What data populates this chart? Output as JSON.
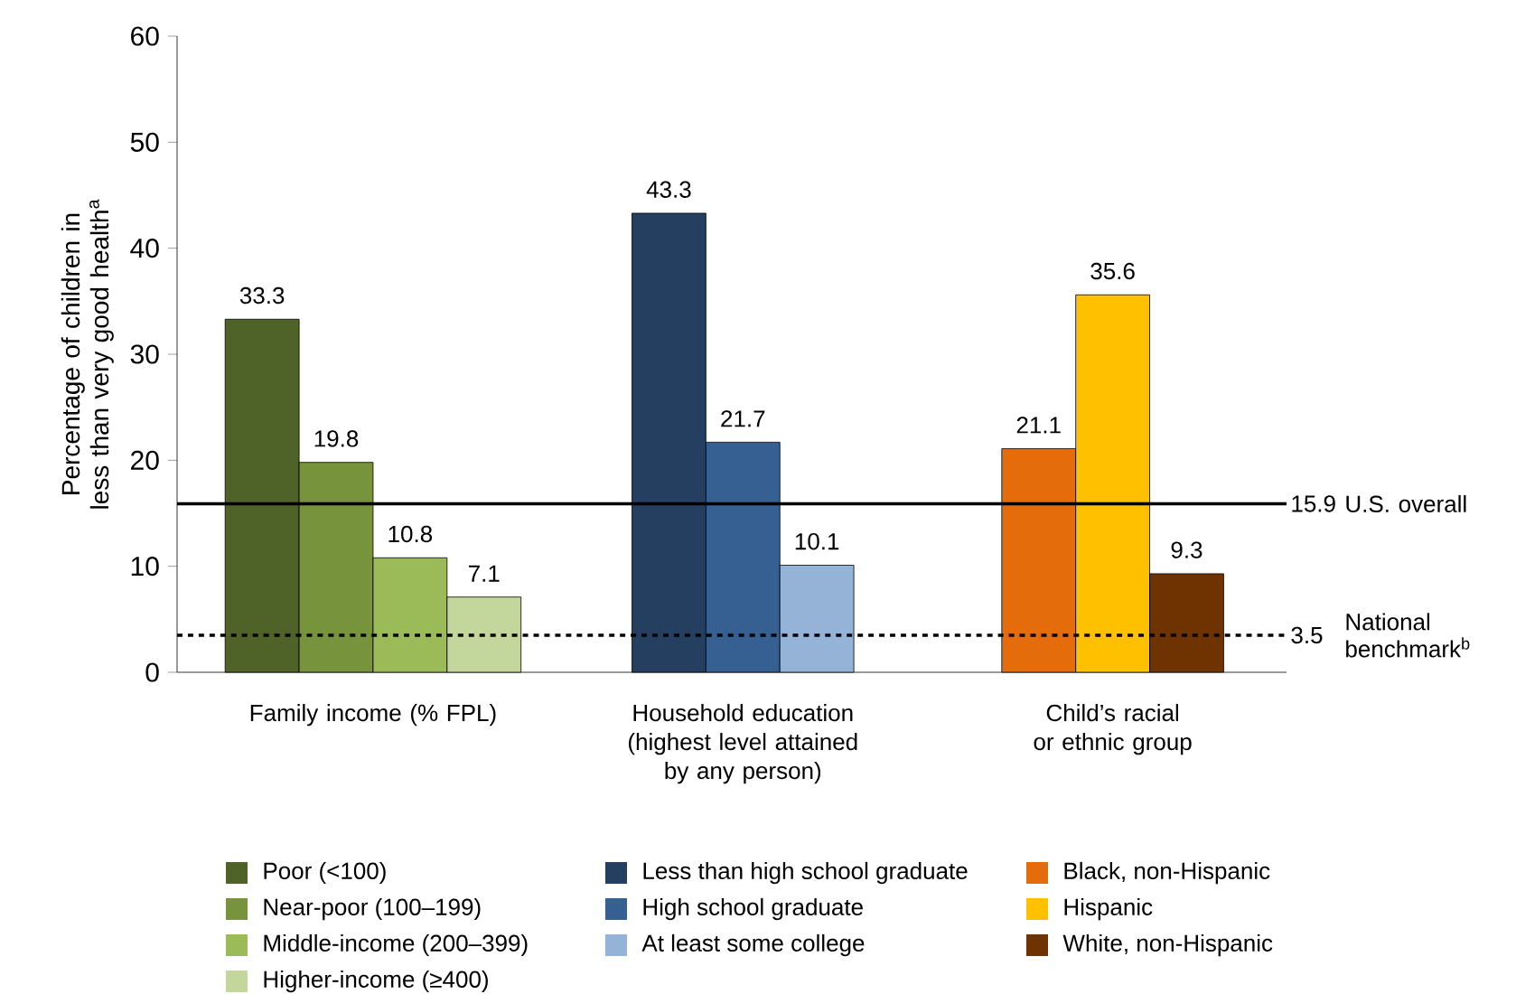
{
  "chart_data": {
    "type": "bar",
    "ylabel": "Percentage of children in less than very good health$^{a}$",
    "categories": [
      "Family income (% FPL)",
      "Household education (highest level attained by any person)",
      "Child’s racial or ethnic group"
    ],
    "series": [
      {
        "name": "Poor (<100)",
        "color": "#4f6228",
        "values": [
          33.3,
          null,
          null
        ]
      },
      {
        "name": "Near-poor (100–199)",
        "color": "#77933c",
        "values": [
          19.8,
          null,
          null
        ]
      },
      {
        "name": "Middle-income (200–399)",
        "color": "#9bbb59",
        "values": [
          10.8,
          null,
          null
        ]
      },
      {
        "name": "Higher-income (≥400)",
        "color": "#c3d69b",
        "values": [
          7.1,
          null,
          null
        ]
      },
      {
        "name": "Less than high school graduate",
        "color": "#243f60",
        "values": [
          null,
          43.3,
          null
        ]
      },
      {
        "name": "High school graduate",
        "color": "#366092",
        "values": [
          null,
          21.7,
          null
        ]
      },
      {
        "name": "At least some college",
        "color": "#95b3d7",
        "values": [
          null,
          10.1,
          null
        ]
      },
      {
        "name": "Black, non-Hispanic",
        "color": "#e46c0a",
        "values": [
          null,
          null,
          21.1
        ]
      },
      {
        "name": "Hispanic",
        "color": "#ffc000",
        "values": [
          null,
          null,
          35.6
        ]
      },
      {
        "name": "White, non-Hispanic",
        "color": "#6e3300",
        "values": [
          null,
          null,
          9.3
        ]
      }
    ],
    "ylim": [
      0,
      60
    ],
    "yticks": [
      0,
      10,
      20,
      30,
      40,
      50,
      60
    ],
    "data_labels": true,
    "ref_lines": [
      {
        "axis": "y",
        "value": 15.9,
        "label": "U.S. overall",
        "color": "#000000",
        "line_style": "solid"
      },
      {
        "axis": "y",
        "value": 3.5,
        "label": "National benchmark$^{b}$",
        "color": "#000000",
        "line_style": "dashed"
      }
    ],
    "annotations": [
      "15.9",
      "3.5"
    ],
    "legend": "bottom"
  }
}
